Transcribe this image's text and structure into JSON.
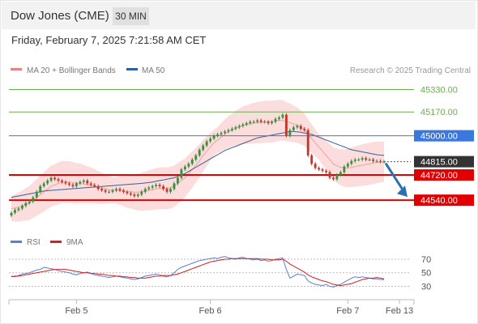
{
  "header": {
    "title": "Dow Jones (CME)",
    "timeframe": "30 MIN",
    "datetime": "Friday, February 7, 2025 7:21:58 AM CET"
  },
  "legend": {
    "items": [
      {
        "label": "MA 20 + Bollinger Bands",
        "color": "#f08080"
      },
      {
        "label": "MA 50",
        "color": "#2e5f9e"
      }
    ],
    "source": "Research © 2025 Trading Central"
  },
  "colors": {
    "green_level": "#6ab04c",
    "blue_level": "#3a78e0",
    "red_level": "#e00000",
    "last_price": "#333333",
    "arrow": "#2e6fb0",
    "bollinger": "#fbdddd",
    "ma20": "#f4a0a0",
    "ma50": "#3d5f99",
    "up": "#3c8f3c",
    "down": "#c0392b",
    "rsi": "#5b7fd6",
    "rsi_ma": "#d62020"
  },
  "chart_data": [
    {
      "type": "candlestick",
      "title": "Dow Jones (CME) 30 MIN",
      "ylim": [
        44350,
        45420
      ],
      "x_ticks": [
        "Feb 5",
        "Feb 6",
        "Feb 7",
        "Feb 13"
      ],
      "price_levels": [
        {
          "label": "45330.00",
          "value": 45330,
          "kind": "resistance"
        },
        {
          "label": "45170.00",
          "value": 45170,
          "kind": "resistance"
        },
        {
          "label": "45000.00",
          "value": 45000,
          "kind": "pivot"
        },
        {
          "label": "44815.00",
          "value": 44815,
          "kind": "last"
        },
        {
          "label": "44720.00",
          "value": 44720,
          "kind": "support"
        },
        {
          "label": "44540.00",
          "value": 44540,
          "kind": "support"
        }
      ],
      "close": [
        44450,
        44470,
        44480,
        44500,
        44520,
        44530,
        44560,
        44600,
        44640,
        44660,
        44680,
        44700,
        44690,
        44680,
        44670,
        44660,
        44650,
        44640,
        44660,
        44670,
        44680,
        44660,
        44650,
        44640,
        44620,
        44610,
        44600,
        44600,
        44610,
        44620,
        44610,
        44600,
        44590,
        44580,
        44570,
        44580,
        44600,
        44620,
        44630,
        44640,
        44650,
        44640,
        44620,
        44600,
        44620,
        44660,
        44700,
        44760,
        44780,
        44800,
        44830,
        44860,
        44900,
        44930,
        44960,
        44980,
        45000,
        45010,
        45020,
        45030,
        45040,
        45050,
        45060,
        45070,
        45080,
        45090,
        45100,
        45100,
        45110,
        45100,
        45100,
        45090,
        45100,
        45120,
        45130,
        45150,
        45000,
        45040,
        45060,
        45070,
        45050,
        45040,
        44860,
        44800,
        44770,
        44760,
        44750,
        44740,
        44700,
        44690,
        44720,
        44740,
        44780,
        44800,
        44820,
        44830,
        44830,
        44840,
        44830,
        44830,
        44820,
        44820,
        44815,
        44815
      ],
      "series": [
        {
          "name": "MA 20",
          "values": [
            44480,
            44485,
            44490,
            44500,
            44510,
            44520,
            44540,
            44560,
            44580,
            44600,
            44620,
            44640,
            44650,
            44660,
            44670,
            44670,
            44670,
            44665,
            44660,
            44660,
            44655,
            44650,
            44645,
            44640,
            44630,
            44625,
            44620,
            44615,
            44610,
            44610,
            44610,
            44605,
            44600,
            44600,
            44598,
            44598,
            44600,
            44605,
            44610,
            44615,
            44620,
            44625,
            44625,
            44625,
            44630,
            44640,
            44660,
            44680,
            44700,
            44730,
            44760,
            44790,
            44820,
            44860,
            44890,
            44920,
            44950,
            44970,
            44990,
            45010,
            45030,
            45040,
            45055,
            45065,
            45075,
            45080,
            45085,
            45090,
            45095,
            45095,
            45100,
            45100,
            45100,
            45105,
            45110,
            45110,
            45100,
            45095,
            45085,
            45075,
            45060,
            45045,
            45010,
            44980,
            44950,
            44920,
            44890,
            44860,
            44830,
            44800,
            44785,
            44775,
            44770,
            44770,
            44775,
            44780,
            44785,
            44790,
            44795,
            44800,
            44805,
            44810,
            44812,
            44815
          ]
        },
        {
          "name": "MA 50",
          "values": [
            44560,
            44565,
            44570,
            44575,
            44580,
            44585,
            44590,
            44595,
            44600,
            44605,
            44608,
            44610,
            44612,
            44614,
            44616,
            44618,
            44620,
            44622,
            44624,
            44626,
            44628,
            44630,
            44632,
            44634,
            44636,
            44638,
            44640,
            44642,
            44644,
            44646,
            44648,
            44650,
            44652,
            44654,
            44656,
            44658,
            44660,
            44663,
            44666,
            44670,
            44675,
            44680,
            44685,
            44690,
            44695,
            44700,
            44710,
            44720,
            44730,
            44745,
            44760,
            44775,
            44790,
            44805,
            44820,
            44835,
            44850,
            44865,
            44880,
            44895,
            44905,
            44915,
            44925,
            44935,
            44945,
            44955,
            44965,
            44975,
            44985,
            44990,
            44995,
            45000,
            45005,
            45010,
            45015,
            45020,
            45025,
            45030,
            45030,
            45028,
            45025,
            45020,
            45015,
            45010,
            45000,
            44990,
            44980,
            44970,
            44960,
            44950,
            44940,
            44930,
            44920,
            44910,
            44900,
            44895,
            44890,
            44885,
            44880,
            44875,
            44870,
            44865,
            44862,
            44860
          ]
        }
      ]
    },
    {
      "type": "line",
      "title": "RSI",
      "ylim": [
        15,
        82
      ],
      "y_ticks": [
        "70",
        "50",
        "30"
      ],
      "series": [
        {
          "name": "RSI",
          "values": [
            45,
            44,
            46,
            48,
            49,
            50,
            52,
            54,
            55,
            58,
            57,
            56,
            55,
            53,
            52,
            51,
            50,
            48,
            47,
            49,
            50,
            51,
            49,
            47,
            46,
            45,
            44,
            43,
            44,
            45,
            44,
            43,
            42,
            41,
            40,
            41,
            43,
            45,
            46,
            47,
            48,
            47,
            45,
            44,
            46,
            50,
            55,
            58,
            60,
            62,
            64,
            66,
            68,
            69,
            70,
            71,
            72,
            71,
            73,
            74,
            72,
            71,
            70,
            72,
            73,
            71,
            70,
            69,
            70,
            68,
            69,
            67,
            68,
            70,
            71,
            72,
            55,
            42,
            45,
            48,
            47,
            46,
            38,
            35,
            33,
            32,
            31,
            33,
            30,
            29,
            31,
            33,
            36,
            39,
            42,
            44,
            43,
            44,
            43,
            42,
            41,
            41,
            40,
            40
          ]
        },
        {
          "name": "9MA",
          "values": [
            44,
            45,
            45,
            46,
            47,
            48,
            49,
            50,
            51,
            52,
            53,
            54,
            55,
            55,
            55,
            55,
            54,
            53,
            52,
            51,
            50,
            50,
            49,
            49,
            48,
            48,
            47,
            46,
            46,
            45,
            45,
            44,
            44,
            43,
            43,
            42,
            42,
            42,
            43,
            44,
            45,
            45,
            46,
            46,
            46,
            47,
            48,
            50,
            52,
            54,
            56,
            58,
            60,
            62,
            64,
            66,
            67,
            68,
            69,
            70,
            70,
            71,
            71,
            71,
            71,
            71,
            71,
            71,
            71,
            70,
            70,
            70,
            69,
            69,
            69,
            70,
            67,
            63,
            60,
            57,
            54,
            51,
            47,
            44,
            42,
            40,
            38,
            37,
            35,
            33,
            32,
            31,
            32,
            33,
            34,
            36,
            38,
            40,
            41,
            42,
            42,
            43,
            42,
            41
          ]
        }
      ]
    }
  ]
}
